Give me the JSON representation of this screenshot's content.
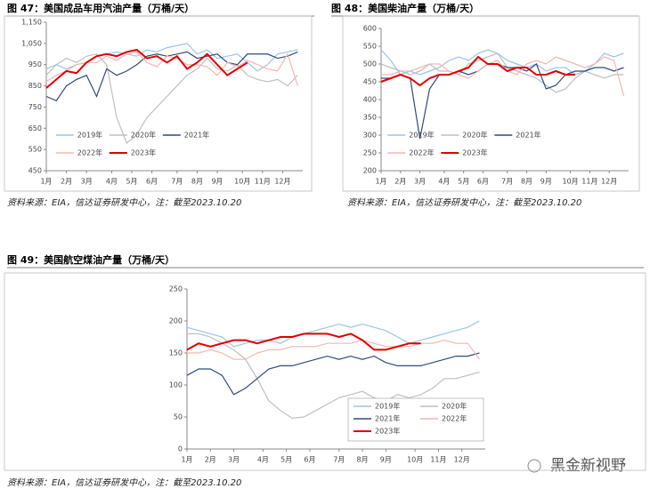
{
  "chart_data": [
    {
      "type": "line",
      "title": "图 47：美国成品车用汽油产量（万桶/天）",
      "legend": "lower center",
      "x": [
        1,
        3,
        5,
        7,
        9,
        11,
        13,
        15,
        17,
        19,
        21,
        23,
        25,
        27,
        29,
        31,
        33,
        35,
        37,
        39,
        41,
        43,
        45,
        47,
        49,
        51
      ],
      "xlim": [
        1,
        52
      ],
      "xticks": [
        {
          "value": 1,
          "label": "1月"
        },
        {
          "value": 5,
          "label": "2月"
        },
        {
          "value": 9,
          "label": "3月"
        },
        {
          "value": 14,
          "label": "4月"
        },
        {
          "value": 18,
          "label": "5月"
        },
        {
          "value": 22,
          "label": "6月"
        },
        {
          "value": 27,
          "label": "7月"
        },
        {
          "value": 31,
          "label": "8月"
        },
        {
          "value": 35,
          "label": "9月"
        },
        {
          "value": 40,
          "label": "10月"
        },
        {
          "value": 44,
          "label": "11月"
        },
        {
          "value": 48,
          "label": "12月"
        }
      ],
      "ylim": [
        450,
        1150
      ],
      "yticks": [
        450,
        550,
        650,
        750,
        850,
        950,
        {
          "value": 1050,
          "label": "1,050"
        },
        {
          "value": 1150,
          "label": "1,150"
        }
      ],
      "series": [
        {
          "name": "2019年",
          "color": "#9dc3e6",
          "values": [
            930,
            950,
            930,
            950,
            960,
            990,
            1000,
            1010,
            1000,
            990,
            1020,
            1010,
            1030,
            1040,
            1050,
            1000,
            1020,
            980,
            990,
            1000,
            960,
            920,
            950,
            1000,
            1010,
            1020
          ]
        },
        {
          "name": "2020年",
          "color": "#bfbfbf",
          "values": [
            900,
            950,
            980,
            960,
            990,
            1000,
            950,
            700,
            580,
            620,
            700,
            750,
            800,
            850,
            900,
            930,
            980,
            930,
            920,
            950,
            900,
            880,
            870,
            880,
            850,
            900
          ]
        },
        {
          "name": "2021年",
          "color": "#2f4b7c",
          "values": [
            800,
            780,
            850,
            880,
            900,
            800,
            930,
            900,
            920,
            950,
            990,
            1000,
            990,
            1000,
            1010,
            980,
            990,
            1000,
            960,
            950,
            1000,
            1000,
            1000,
            980,
            990,
            1010
          ]
        },
        {
          "name": "2022年",
          "color": "#f4b6b0",
          "values": [
            870,
            900,
            920,
            950,
            960,
            960,
            990,
            970,
            1000,
            1010,
            960,
            940,
            990,
            980,
            950,
            950,
            940,
            900,
            960,
            940,
            970,
            950,
            930,
            920,
            1000,
            850
          ]
        },
        {
          "name": "2023年",
          "color": "#e00000",
          "width": 2,
          "values": [
            840,
            880,
            920,
            910,
            960,
            990,
            1000,
            990,
            1010,
            1020,
            980,
            990,
            960,
            990,
            930,
            960,
            1000,
            950,
            900,
            930,
            960,
            null,
            null,
            null,
            null,
            null
          ]
        }
      ]
    },
    {
      "type": "line",
      "title": "图 48：美国柴油产量（万桶/天）",
      "legend": "lower center",
      "x": [
        1,
        3,
        5,
        7,
        9,
        11,
        13,
        15,
        17,
        19,
        21,
        23,
        25,
        27,
        29,
        31,
        33,
        35,
        37,
        39,
        41,
        43,
        45,
        47,
        49,
        51
      ],
      "xlim": [
        1,
        52
      ],
      "xticks": [
        {
          "value": 1,
          "label": "1月"
        },
        {
          "value": 5,
          "label": "2月"
        },
        {
          "value": 9,
          "label": "3月"
        },
        {
          "value": 14,
          "label": "4月"
        },
        {
          "value": 18,
          "label": "5月"
        },
        {
          "value": 22,
          "label": "6月"
        },
        {
          "value": 27,
          "label": "7月"
        },
        {
          "value": 31,
          "label": "8月"
        },
        {
          "value": 35,
          "label": "9月"
        },
        {
          "value": 40,
          "label": "10月"
        },
        {
          "value": 44,
          "label": "11月"
        },
        {
          "value": 48,
          "label": "12月"
        }
      ],
      "ylim": [
        200,
        600
      ],
      "yticks": [
        200,
        250,
        300,
        350,
        400,
        450,
        500,
        550,
        600
      ],
      "series": [
        {
          "name": "2019年",
          "color": "#9dc3e6",
          "values": [
            540,
            510,
            470,
            480,
            470,
            480,
            490,
            510,
            520,
            510,
            530,
            540,
            530,
            510,
            500,
            490,
            500,
            480,
            490,
            490,
            470,
            480,
            500,
            530,
            520,
            530
          ]
        },
        {
          "name": "2020年",
          "color": "#bfbfbf",
          "values": [
            500,
            490,
            480,
            470,
            480,
            500,
            480,
            480,
            470,
            500,
            510,
            520,
            530,
            490,
            480,
            470,
            460,
            440,
            420,
            430,
            460,
            480,
            470,
            460,
            470,
            470
          ]
        },
        {
          "name": "2021年",
          "color": "#2f4b7c",
          "values": [
            460,
            460,
            470,
            460,
            290,
            430,
            470,
            470,
            480,
            470,
            480,
            500,
            500,
            490,
            490,
            480,
            500,
            430,
            440,
            470,
            480,
            480,
            490,
            490,
            480,
            490
          ]
        },
        {
          "name": "2022年",
          "color": "#f4b6b0",
          "values": [
            470,
            470,
            480,
            480,
            490,
            500,
            500,
            480,
            470,
            460,
            480,
            500,
            510,
            480,
            470,
            500,
            510,
            500,
            520,
            510,
            500,
            490,
            500,
            520,
            510,
            410
          ]
        },
        {
          "name": "2023年",
          "color": "#e00000",
          "width": 2,
          "values": [
            450,
            460,
            470,
            460,
            440,
            460,
            470,
            470,
            480,
            490,
            520,
            500,
            500,
            480,
            490,
            490,
            470,
            470,
            480,
            470,
            470,
            null,
            null,
            null,
            null,
            null
          ]
        }
      ]
    },
    {
      "type": "line",
      "title": "图 49：美国航空煤油产量（万桶/天）",
      "legend": "lower right",
      "x": [
        1,
        3,
        5,
        7,
        9,
        11,
        13,
        15,
        17,
        19,
        21,
        23,
        25,
        27,
        29,
        31,
        33,
        35,
        37,
        39,
        41,
        43,
        45,
        47,
        49,
        51
      ],
      "xlim": [
        1,
        52
      ],
      "xticks": [
        {
          "value": 1,
          "label": "1月"
        },
        {
          "value": 5,
          "label": "2月"
        },
        {
          "value": 9,
          "label": "3月"
        },
        {
          "value": 14,
          "label": "4月"
        },
        {
          "value": 18,
          "label": "5月"
        },
        {
          "value": 22,
          "label": "6月"
        },
        {
          "value": 27,
          "label": "7月"
        },
        {
          "value": 31,
          "label": "8月"
        },
        {
          "value": 35,
          "label": "9月"
        },
        {
          "value": 40,
          "label": "10月"
        },
        {
          "value": 44,
          "label": "11月"
        },
        {
          "value": 48,
          "label": "12月"
        }
      ],
      "ylim": [
        0,
        250
      ],
      "yticks": [
        0,
        50,
        100,
        150,
        200,
        250
      ],
      "series": [
        {
          "name": "2019年",
          "color": "#9dc3e6",
          "values": [
            190,
            185,
            180,
            175,
            160,
            165,
            170,
            170,
            165,
            175,
            180,
            185,
            190,
            195,
            190,
            195,
            190,
            185,
            175,
            165,
            170,
            175,
            180,
            185,
            190,
            200
          ]
        },
        {
          "name": "2020年",
          "color": "#bfbfbf",
          "values": [
            180,
            180,
            175,
            165,
            155,
            140,
            110,
            75,
            60,
            48,
            50,
            60,
            70,
            80,
            85,
            90,
            80,
            75,
            85,
            80,
            85,
            95,
            110,
            110,
            115,
            120
          ]
        },
        {
          "name": "2021年",
          "color": "#2f4b7c",
          "values": [
            115,
            125,
            125,
            115,
            85,
            95,
            110,
            125,
            130,
            130,
            135,
            140,
            145,
            140,
            145,
            140,
            145,
            135,
            130,
            130,
            130,
            135,
            140,
            145,
            145,
            150
          ]
        },
        {
          "name": "2022年",
          "color": "#f4b6b0",
          "values": [
            150,
            150,
            155,
            150,
            140,
            140,
            150,
            155,
            155,
            160,
            160,
            160,
            165,
            165,
            165,
            170,
            165,
            160,
            160,
            160,
            165,
            165,
            170,
            165,
            165,
            140
          ]
        },
        {
          "name": "2023年",
          "color": "#e00000",
          "width": 2,
          "values": [
            155,
            165,
            160,
            165,
            170,
            170,
            165,
            170,
            175,
            175,
            180,
            180,
            180,
            175,
            180,
            170,
            155,
            155,
            160,
            165,
            165,
            null,
            null,
            null,
            null,
            null
          ]
        }
      ]
    }
  ],
  "sources": [
    "资料来源：EIA，信达证券研发中心，注：截至2023.10.20",
    "资料来源：EIA，信达证券研发中心，注：截至2023.10.20",
    "资料来源：EIA，信达证券研发中心，注：截至2023.10.20"
  ],
  "watermark": "黑金新视野"
}
